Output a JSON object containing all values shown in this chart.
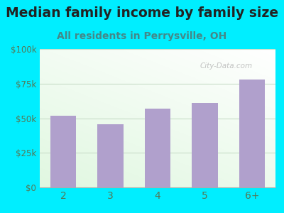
{
  "title": "Median family income by family size",
  "subtitle": "All residents in Perrysville, OH",
  "categories": [
    "2",
    "3",
    "4",
    "5",
    "6+"
  ],
  "values": [
    52000,
    45500,
    57000,
    61000,
    78000
  ],
  "bar_color": "#b0a0cc",
  "title_fontsize": 13.5,
  "subtitle_fontsize": 10,
  "subtitle_color": "#448888",
  "title_color": "#222222",
  "background_outer": "#00eeff",
  "ylim": [
    0,
    100000
  ],
  "yticks": [
    0,
    25000,
    50000,
    75000,
    100000
  ],
  "ytick_labels": [
    "$0",
    "$25k",
    "$50k",
    "$75k",
    "$100k"
  ],
  "tick_color": "#557755",
  "grid_color": "#c8ddc8",
  "watermark": "City-Data.com"
}
